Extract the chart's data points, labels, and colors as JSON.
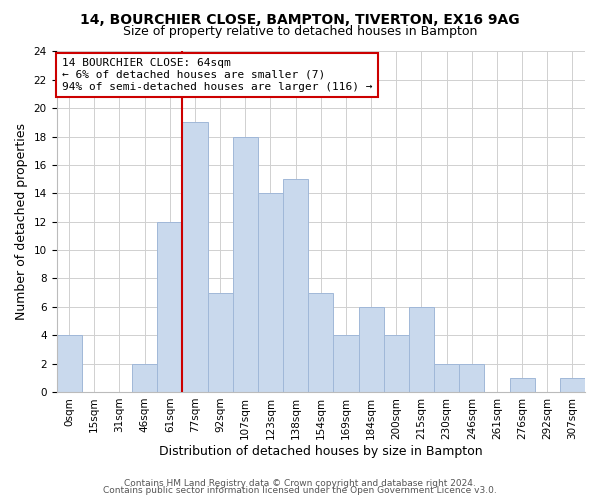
{
  "title": "14, BOURCHIER CLOSE, BAMPTON, TIVERTON, EX16 9AG",
  "subtitle": "Size of property relative to detached houses in Bampton",
  "xlabel": "Distribution of detached houses by size in Bampton",
  "ylabel": "Number of detached properties",
  "bin_labels": [
    "0sqm",
    "15sqm",
    "31sqm",
    "46sqm",
    "61sqm",
    "77sqm",
    "92sqm",
    "107sqm",
    "123sqm",
    "138sqm",
    "154sqm",
    "169sqm",
    "184sqm",
    "200sqm",
    "215sqm",
    "230sqm",
    "246sqm",
    "261sqm",
    "276sqm",
    "292sqm",
    "307sqm"
  ],
  "bar_heights": [
    4,
    0,
    0,
    2,
    12,
    19,
    7,
    18,
    14,
    15,
    7,
    4,
    6,
    4,
    6,
    2,
    2,
    0,
    1,
    0,
    1
  ],
  "bar_color": "#c9d9ed",
  "bar_edge_color": "#a0b8d8",
  "vline_bin_index": 4,
  "vline_color": "#cc0000",
  "annotation_line1": "14 BOURCHIER CLOSE: 64sqm",
  "annotation_line2": "← 6% of detached houses are smaller (7)",
  "annotation_line3": "94% of semi-detached houses are larger (116) →",
  "annotation_box_edge": "#cc0000",
  "ylim": [
    0,
    24
  ],
  "yticks": [
    0,
    2,
    4,
    6,
    8,
    10,
    12,
    14,
    16,
    18,
    20,
    22,
    24
  ],
  "footer1": "Contains HM Land Registry data © Crown copyright and database right 2024.",
  "footer2": "Contains public sector information licensed under the Open Government Licence v3.0.",
  "bg_color": "#ffffff",
  "grid_color": "#d0d0d0",
  "title_fontsize": 10,
  "subtitle_fontsize": 9,
  "axis_label_fontsize": 9,
  "tick_fontsize": 7.5,
  "annotation_fontsize": 8,
  "footer_fontsize": 6.5
}
